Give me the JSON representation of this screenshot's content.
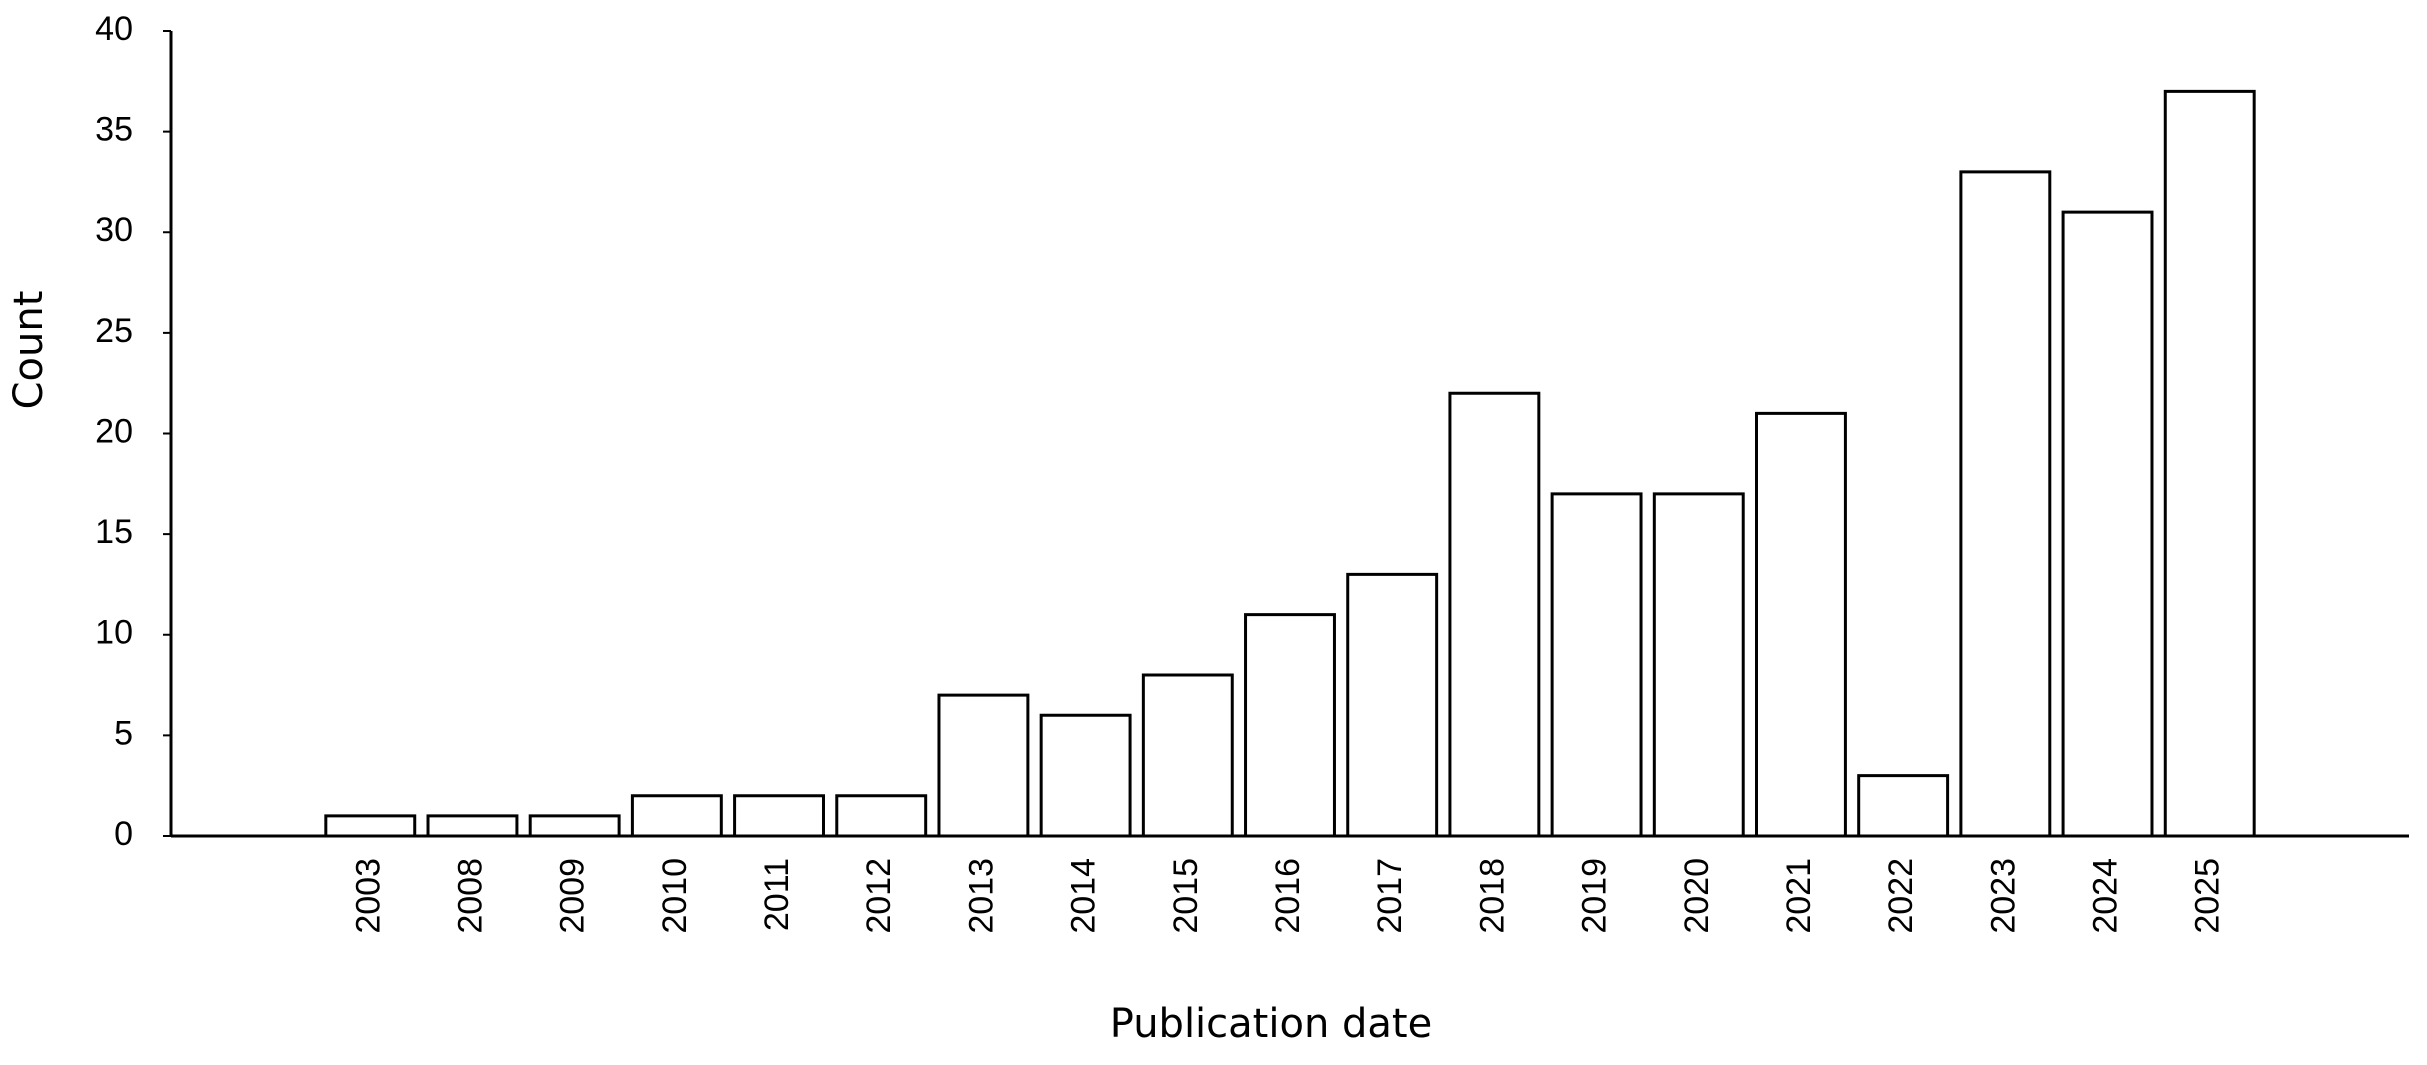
{
  "chart_data": {
    "type": "bar",
    "x_label": "Publication date",
    "y_label": "Count",
    "categories": [
      "2003",
      "2008",
      "2009",
      "2010",
      "2011",
      "2012",
      "2013",
      "2014",
      "2015",
      "2016",
      "2017",
      "2018",
      "2019",
      "2020",
      "2021",
      "2022",
      "2023",
      "2024",
      "2025"
    ],
    "values": [
      1,
      1,
      1,
      2,
      2,
      2,
      7,
      6,
      8,
      11,
      13,
      22,
      17,
      17,
      21,
      3,
      33,
      31,
      37
    ],
    "color": "#ffffff",
    "ylim": [
      0,
      40
    ],
    "yticks": [
      0,
      5,
      10,
      15,
      20,
      25,
      30,
      35,
      40
    ],
    "grid": false
  }
}
